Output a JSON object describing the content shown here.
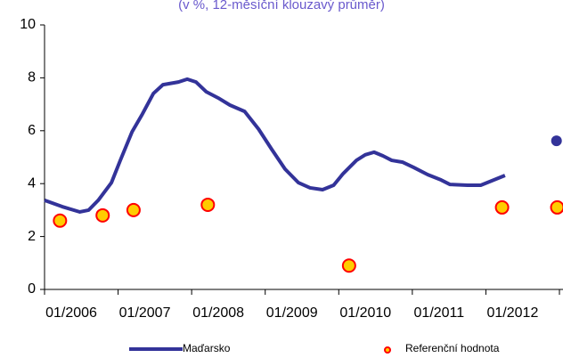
{
  "chart_data": {
    "type": "line",
    "title": "(v %, 12-měsíční klouzavý průměr)",
    "xlim": [
      2006,
      2013
    ],
    "xticks": [
      {
        "value": 2006,
        "label": "01/2006"
      },
      {
        "value": 2007,
        "label": "01/2007"
      },
      {
        "value": 2008,
        "label": "01/2008"
      },
      {
        "value": 2009,
        "label": "01/2009"
      },
      {
        "value": 2010,
        "label": "01/2010"
      },
      {
        "value": 2011,
        "label": "01/2011"
      },
      {
        "value": 2012,
        "label": "01/2012"
      }
    ],
    "ylim": [
      0,
      10
    ],
    "yticks": [
      0,
      2,
      4,
      6,
      8,
      10
    ],
    "series": [
      {
        "name": "Maďarsko",
        "color": "#333399",
        "x": [
          2006.0,
          2006.24,
          2006.48,
          2006.6,
          2006.73,
          2006.91,
          2007.03,
          2007.19,
          2007.33,
          2007.48,
          2007.61,
          2007.82,
          2007.94,
          2008.06,
          2008.2,
          2008.36,
          2008.52,
          2008.72,
          2008.91,
          2009.09,
          2009.27,
          2009.45,
          2009.61,
          2009.78,
          2009.93,
          2010.06,
          2010.24,
          2010.36,
          2010.48,
          2010.6,
          2010.72,
          2010.87,
          2011.02,
          2011.21,
          2011.39,
          2011.51,
          2011.75,
          2011.93,
          2012.11,
          2012.26,
          2012.6,
          2012.96
        ],
        "values": [
          3.37,
          3.13,
          2.93,
          3.0,
          3.37,
          4.04,
          4.88,
          5.96,
          6.63,
          7.41,
          7.74,
          7.84,
          7.95,
          7.84,
          7.47,
          7.24,
          6.97,
          6.73,
          6.06,
          5.29,
          4.55,
          4.04,
          3.84,
          3.77,
          3.94,
          4.38,
          4.88,
          5.09,
          5.19,
          5.05,
          4.88,
          4.81,
          4.61,
          4.34,
          4.14,
          3.97,
          3.94,
          3.94,
          4.14,
          4.31,
          null,
          5.62
        ]
      },
      {
        "name": "Referenční hodnota",
        "color": "#ffcc00",
        "type": "scatter",
        "x": [
          2006.21,
          2006.79,
          2007.21,
          2008.22,
          2010.14,
          2012.22,
          2012.97
        ],
        "values": [
          2.6,
          2.8,
          3.0,
          3.2,
          0.9,
          3.1,
          3.1
        ]
      }
    ]
  }
}
